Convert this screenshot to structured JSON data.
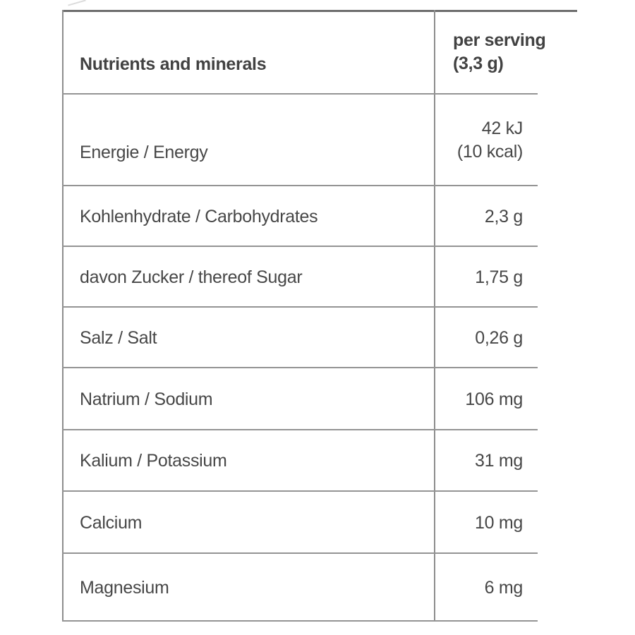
{
  "table": {
    "header": {
      "col1": "Nutrients and minerals",
      "col2_line1": "per serving",
      "col2_line2": "(3,3 g)"
    },
    "rows": [
      {
        "label": "Energie / Energy",
        "value_line1": "42 kJ",
        "value_line2": "(10 kcal)"
      },
      {
        "label": "Kohlenhydrate / Carbohydrates",
        "value": "2,3 g"
      },
      {
        "label": "davon Zucker / thereof Sugar",
        "value": "1,75 g"
      },
      {
        "label": "Salz / Salt",
        "value": "0,26 g"
      },
      {
        "label": "Natrium / Sodium",
        "value": "106 mg"
      },
      {
        "label": "Kalium / Potassium",
        "value": "31 mg"
      },
      {
        "label": "Calcium",
        "value": "10 mg"
      },
      {
        "label": "Magnesium",
        "value": "6 mg"
      }
    ],
    "colors": {
      "text": "#474747",
      "separator_line": "#949494",
      "border_line": "#8d8d8d",
      "top_border": "#6d6d6d",
      "background": "#ffffff"
    }
  },
  "chart_data": {
    "type": "table",
    "columns": [
      "Nutrients and minerals",
      "per serving (3,3 g)"
    ],
    "rows": [
      [
        "Energie / Energy",
        "42 kJ (10 kcal)"
      ],
      [
        "Kohlenhydrate / Carbohydrates",
        "2,3 g"
      ],
      [
        "davon Zucker / thereof Sugar",
        "1,75 g"
      ],
      [
        "Salz / Salt",
        "0,26 g"
      ],
      [
        "Natrium / Sodium",
        "106 mg"
      ],
      [
        "Kalium / Potassium",
        "31 mg"
      ],
      [
        "Calcium",
        "10 mg"
      ],
      [
        "Magnesium",
        "6 mg"
      ]
    ]
  }
}
